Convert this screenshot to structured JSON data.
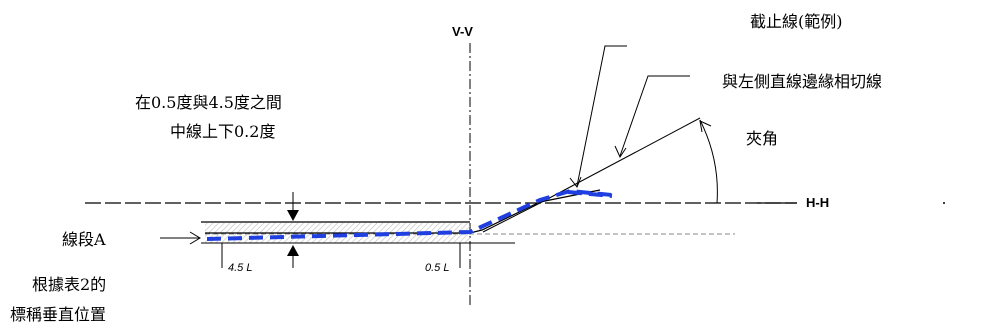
{
  "labels": {
    "cutoff": "截止線(範例)",
    "tangent": "與左側直線邊緣相切線",
    "angle": "夾角",
    "range_line1": "在0.5度與4.5度之間",
    "range_line2": "中線上下0.2度",
    "segment_a": "線段A",
    "nominal_line1": "根據表2的",
    "nominal_line2": "標稱垂直位置",
    "vv": "V-V",
    "hh": "H-H",
    "mark_45": "4.5 L",
    "mark_05": "0.5 L"
  },
  "colors": {
    "line": "#000000",
    "beam": "#1f3fe0",
    "hatch": "#c8c8c8"
  }
}
